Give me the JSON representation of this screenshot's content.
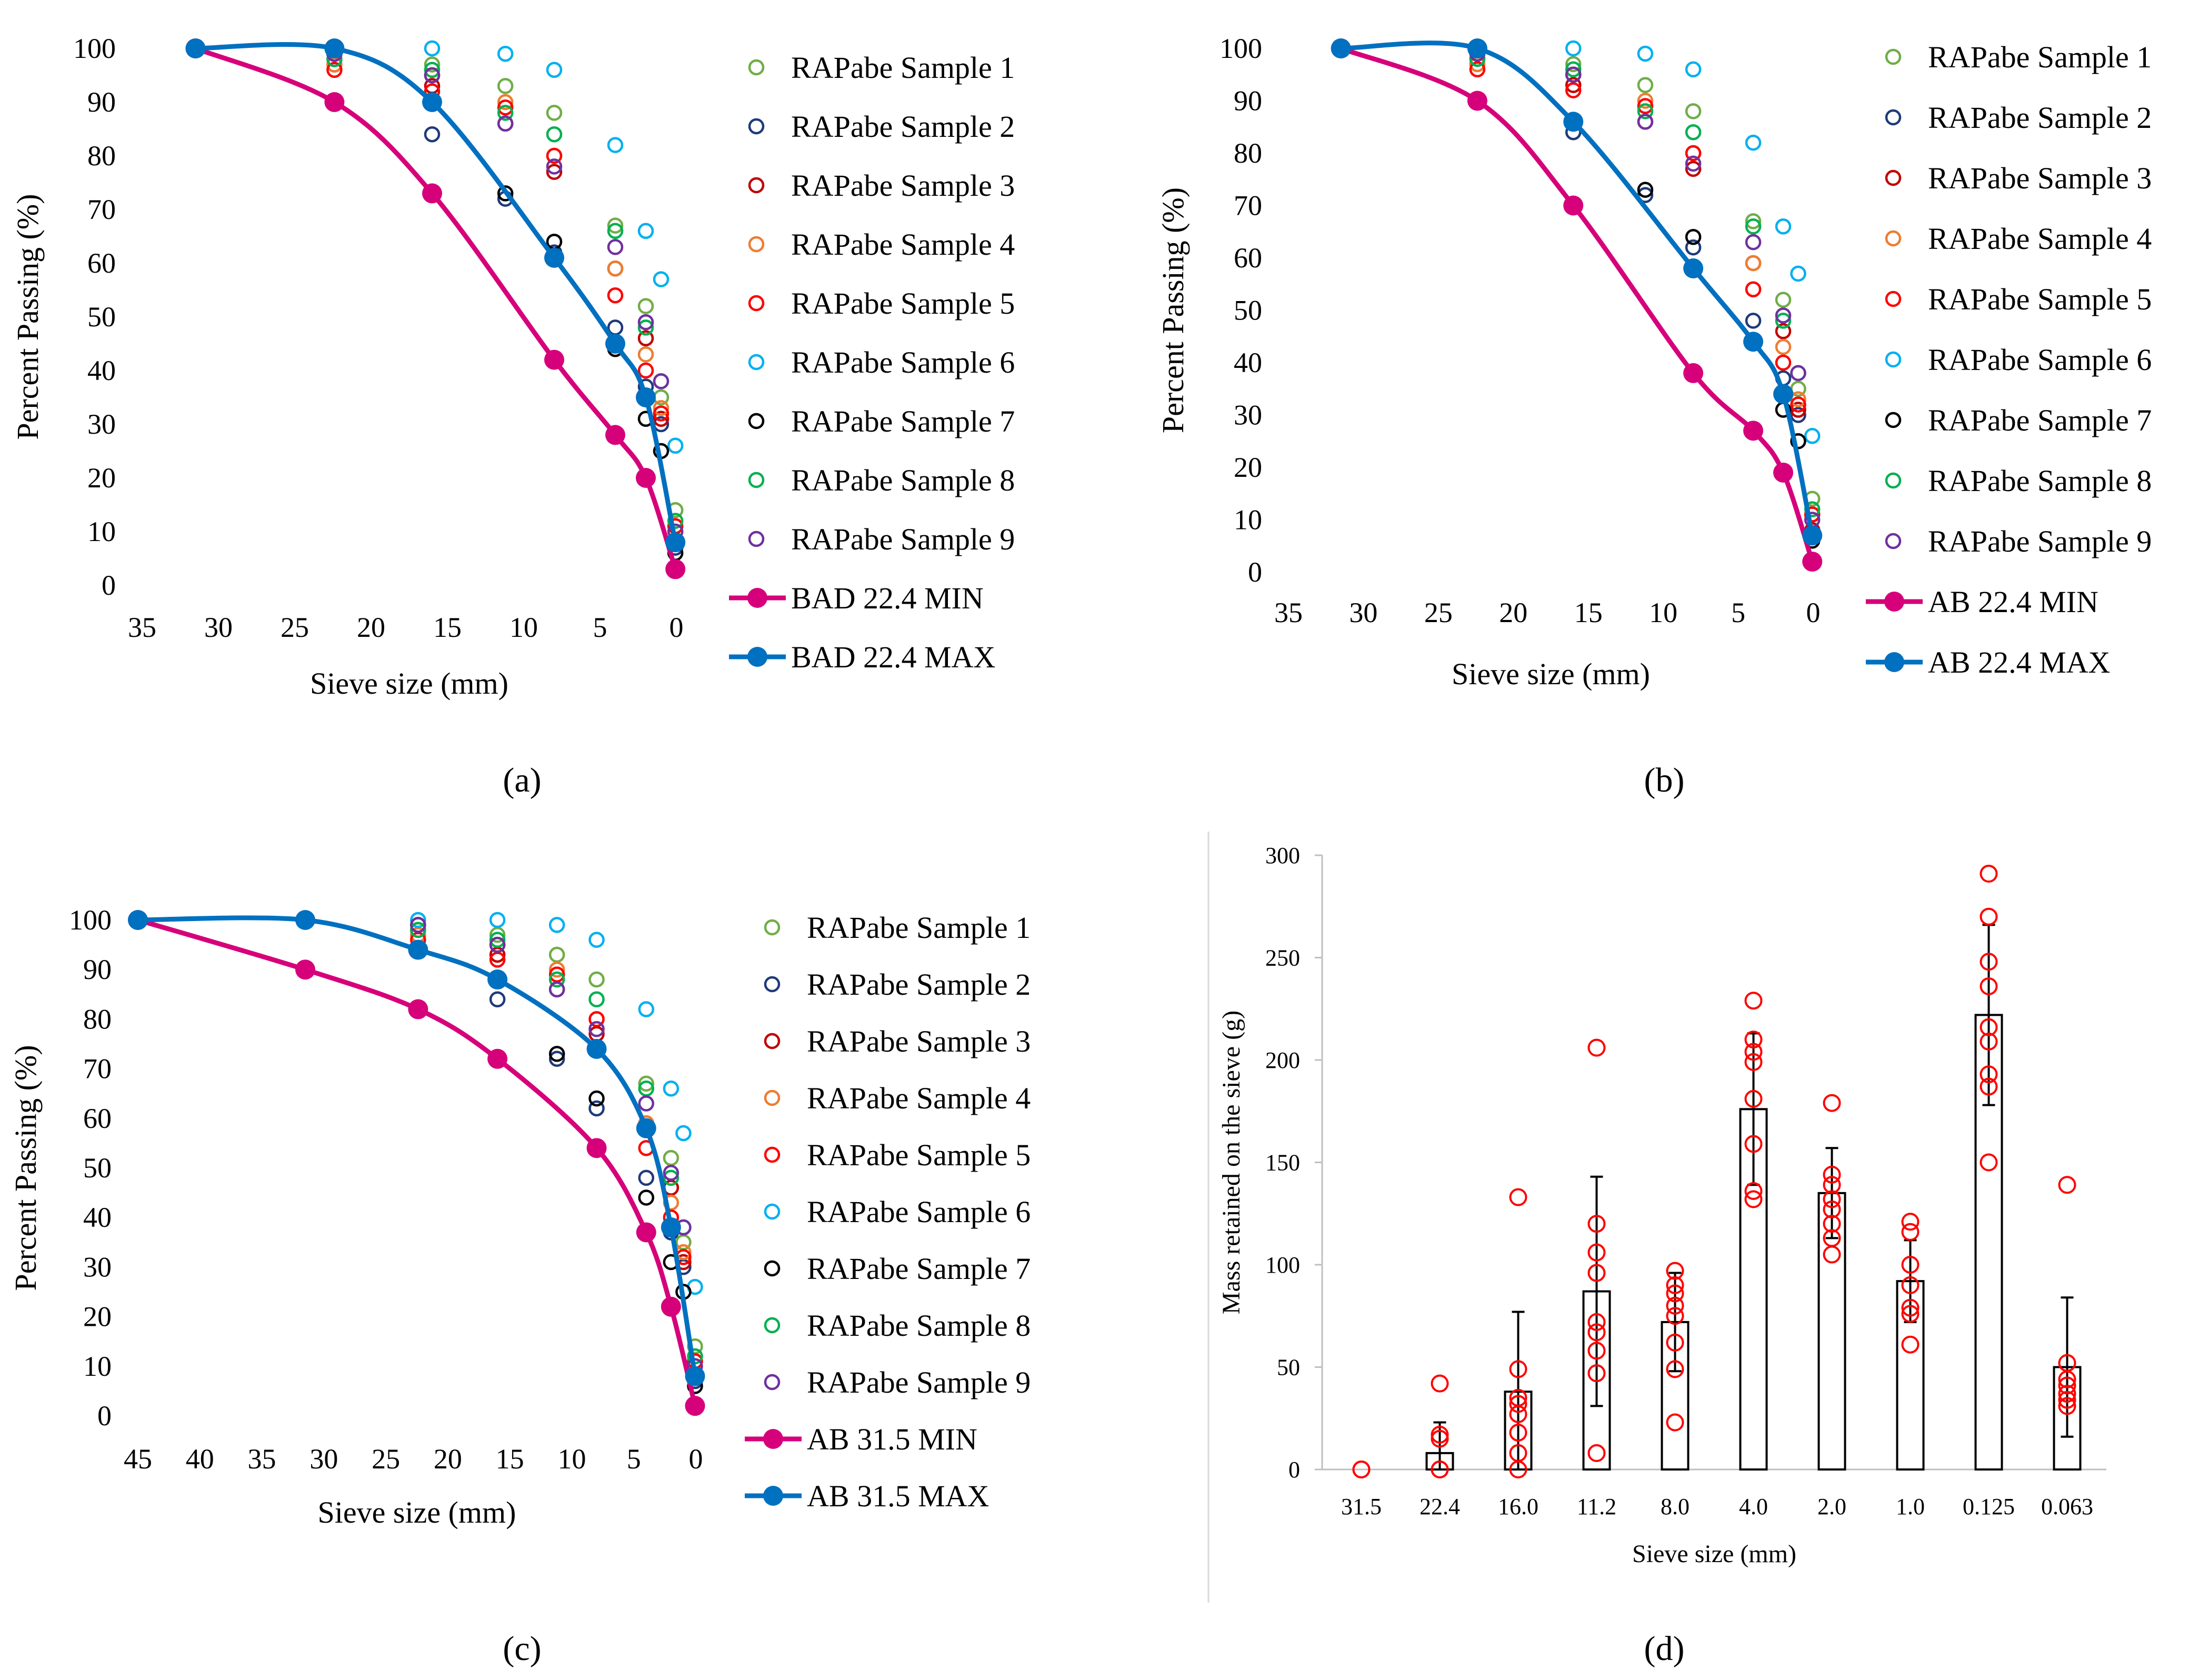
{
  "sample_colors": [
    "#70AD47",
    "#1F3A7A",
    "#C00000",
    "#ED7D31",
    "#FF0000",
    "#00B0F0",
    "#000000",
    "#00B050",
    "#7030A0"
  ],
  "min_color": "#D6007A",
  "max_color": "#0070C0",
  "bar_marker_color": "#FF0000",
  "chart_data": [
    {
      "type": "scatter",
      "panel_label": "(a)",
      "xlabel": "Sieve size (mm)",
      "ylabel": "Percent Passing (%)",
      "xlim": [
        35,
        0
      ],
      "ylim": [
        0,
        100
      ],
      "x_ticks": [
        "35",
        "30",
        "25",
        "20",
        "15",
        "10",
        "5",
        "0"
      ],
      "y_ticks": [
        "0",
        "10",
        "20",
        "30",
        "40",
        "50",
        "60",
        "70",
        "80",
        "90",
        "100"
      ],
      "sieves": [
        31.5,
        22.4,
        16,
        11.2,
        8,
        4,
        2,
        1,
        0.063
      ],
      "samples": [
        {
          "name": "RAPabe Sample 1",
          "values": [
            100,
            99,
            97,
            93,
            88,
            67,
            52,
            35,
            14
          ]
        },
        {
          "name": "RAPabe Sample 2",
          "values": [
            100,
            98,
            84,
            72,
            62,
            48,
            37,
            30,
            7
          ]
        },
        {
          "name": "RAPabe Sample 3",
          "values": [
            100,
            97,
            93,
            86,
            77,
            59,
            46,
            31,
            8
          ]
        },
        {
          "name": "RAPabe Sample 4",
          "values": [
            100,
            97,
            95,
            90,
            80,
            59,
            43,
            33,
            11
          ]
        },
        {
          "name": "RAPabe Sample 5",
          "values": [
            100,
            96,
            92,
            89,
            80,
            54,
            40,
            32,
            11
          ]
        },
        {
          "name": "RAPabe Sample 6",
          "values": [
            100,
            100,
            100,
            99,
            96,
            82,
            66,
            57,
            26
          ]
        },
        {
          "name": "RAPabe Sample 7",
          "values": [
            100,
            99,
            95,
            73,
            64,
            44,
            31,
            25,
            6
          ]
        },
        {
          "name": "RAPabe Sample 8",
          "values": [
            100,
            98,
            96,
            88,
            84,
            66,
            48,
            38,
            12
          ]
        },
        {
          "name": "RAPabe Sample 9",
          "values": [
            100,
            99,
            95,
            86,
            78,
            63,
            49,
            38,
            10
          ]
        }
      ],
      "min_curve": {
        "name": "BAD 22.4 MIN",
        "x": [
          31.5,
          22.4,
          16,
          8,
          4,
          2,
          0.063
        ],
        "y": [
          100,
          90,
          73,
          42,
          28,
          20,
          3
        ]
      },
      "max_curve": {
        "name": "BAD 22.4 MAX",
        "x": [
          31.5,
          22.4,
          16,
          8,
          4,
          2,
          0.063
        ],
        "y": [
          100,
          100,
          90,
          61,
          45,
          35,
          8
        ]
      }
    },
    {
      "type": "scatter",
      "panel_label": "(b)",
      "xlabel": "Sieve size (mm)",
      "ylabel": "Percent Passing (%)",
      "xlim": [
        35,
        0
      ],
      "ylim": [
        0,
        100
      ],
      "x_ticks": [
        "35",
        "30",
        "25",
        "20",
        "15",
        "10",
        "5",
        "0"
      ],
      "y_ticks": [
        "0",
        "10",
        "20",
        "30",
        "40",
        "50",
        "60",
        "70",
        "80",
        "90",
        "100"
      ],
      "sieves": [
        31.5,
        22.4,
        16,
        11.2,
        8,
        4,
        2,
        1,
        0.063
      ],
      "samples": [
        {
          "name": "RAPabe Sample 1",
          "values": [
            100,
            99,
            97,
            93,
            88,
            67,
            52,
            35,
            14
          ]
        },
        {
          "name": "RAPabe Sample 2",
          "values": [
            100,
            98,
            84,
            72,
            62,
            48,
            37,
            30,
            7
          ]
        },
        {
          "name": "RAPabe Sample 3",
          "values": [
            100,
            97,
            93,
            86,
            77,
            59,
            46,
            31,
            8
          ]
        },
        {
          "name": "RAPabe Sample 4",
          "values": [
            100,
            97,
            95,
            90,
            80,
            59,
            43,
            33,
            11
          ]
        },
        {
          "name": "RAPabe Sample 5",
          "values": [
            100,
            96,
            92,
            89,
            80,
            54,
            40,
            32,
            11
          ]
        },
        {
          "name": "RAPabe Sample 6",
          "values": [
            100,
            100,
            100,
            99,
            96,
            82,
            66,
            57,
            26
          ]
        },
        {
          "name": "RAPabe Sample 7",
          "values": [
            100,
            99,
            95,
            73,
            64,
            44,
            31,
            25,
            6
          ]
        },
        {
          "name": "RAPabe Sample 8",
          "values": [
            100,
            98,
            96,
            88,
            84,
            66,
            48,
            38,
            12
          ]
        },
        {
          "name": "RAPabe Sample 9",
          "values": [
            100,
            99,
            95,
            86,
            78,
            63,
            49,
            38,
            10
          ]
        }
      ],
      "min_curve": {
        "name": "AB 22.4 MIN",
        "x": [
          31.5,
          22.4,
          16,
          8,
          4,
          2,
          0.063
        ],
        "y": [
          100,
          90,
          70,
          38,
          27,
          19,
          2
        ]
      },
      "max_curve": {
        "name": "AB 22.4 MAX",
        "x": [
          31.5,
          22.4,
          16,
          8,
          4,
          2,
          0.063
        ],
        "y": [
          100,
          100,
          86,
          58,
          44,
          34,
          7
        ]
      }
    },
    {
      "type": "scatter",
      "panel_label": "(c)",
      "xlabel": "Sieve size (mm)",
      "ylabel": "Percent Passing (%)",
      "xlim": [
        45,
        0
      ],
      "ylim": [
        0,
        100
      ],
      "x_ticks": [
        "45",
        "40",
        "35",
        "30",
        "25",
        "20",
        "15",
        "10",
        "5",
        "0"
      ],
      "y_ticks": [
        "0",
        "10",
        "20",
        "30",
        "40",
        "50",
        "60",
        "70",
        "80",
        "90",
        "100"
      ],
      "sieves": [
        31.5,
        22.4,
        16,
        11.2,
        8,
        4,
        2,
        1,
        0.063
      ],
      "samples": [
        {
          "name": "RAPabe Sample 1",
          "values": [
            100,
            99,
            97,
            93,
            88,
            67,
            52,
            35,
            14
          ]
        },
        {
          "name": "RAPabe Sample 2",
          "values": [
            100,
            98,
            84,
            72,
            62,
            48,
            37,
            30,
            7
          ]
        },
        {
          "name": "RAPabe Sample 3",
          "values": [
            100,
            97,
            93,
            86,
            77,
            59,
            46,
            31,
            8
          ]
        },
        {
          "name": "RAPabe Sample 4",
          "values": [
            100,
            97,
            95,
            90,
            80,
            59,
            43,
            33,
            11
          ]
        },
        {
          "name": "RAPabe Sample 5",
          "values": [
            100,
            96,
            92,
            89,
            80,
            54,
            40,
            32,
            11
          ]
        },
        {
          "name": "RAPabe Sample 6",
          "values": [
            100,
            100,
            100,
            99,
            96,
            82,
            66,
            57,
            26
          ]
        },
        {
          "name": "RAPabe Sample 7",
          "values": [
            100,
            99,
            95,
            73,
            64,
            44,
            31,
            25,
            6
          ]
        },
        {
          "name": "RAPabe Sample 8",
          "values": [
            100,
            98,
            96,
            88,
            84,
            66,
            48,
            38,
            12
          ]
        },
        {
          "name": "RAPabe Sample 9",
          "values": [
            100,
            99,
            95,
            86,
            78,
            63,
            49,
            38,
            10
          ]
        }
      ],
      "min_curve": {
        "name": "AB 31.5 MIN",
        "x": [
          45,
          31.5,
          22.4,
          16,
          8,
          4,
          2,
          0.063
        ],
        "y": [
          100,
          90,
          82,
          72,
          54,
          37,
          22,
          2
        ]
      },
      "max_curve": {
        "name": "AB 31.5 MAX",
        "x": [
          45,
          31.5,
          22.4,
          16,
          8,
          4,
          2,
          0.063
        ],
        "y": [
          100,
          100,
          94,
          88,
          74,
          58,
          38,
          8
        ]
      }
    },
    {
      "type": "bar",
      "panel_label": "(d)",
      "xlabel": "Sieve size (mm)",
      "ylabel": "Mass retained on the sieve (g)",
      "ylim": [
        0,
        300
      ],
      "y_ticks": [
        "0",
        "50",
        "100",
        "150",
        "200",
        "250",
        "300"
      ],
      "categories": [
        "31.5",
        "22.4",
        "16.0",
        "11.2",
        "8.0",
        "4.0",
        "2.0",
        "1.0",
        "0.125",
        "0.063"
      ],
      "values": [
        0,
        8,
        38,
        87,
        72,
        176,
        135,
        92,
        222,
        50
      ],
      "error": [
        0,
        15,
        39,
        56,
        24,
        37,
        22,
        20,
        44,
        34
      ],
      "points": [
        [
          0,
          0
        ],
        [
          0,
          0,
          15,
          17,
          42
        ],
        [
          0,
          8,
          18,
          27,
          32,
          35,
          49,
          133
        ],
        [
          8,
          47,
          58,
          67,
          72,
          96,
          106,
          120,
          206
        ],
        [
          23,
          49,
          62,
          75,
          80,
          86,
          90,
          97
        ],
        [
          132,
          136,
          159,
          181,
          199,
          204,
          210,
          229
        ],
        [
          105,
          113,
          120,
          127,
          132,
          139,
          144,
          179
        ],
        [
          61,
          76,
          79,
          90,
          100,
          116,
          121
        ],
        [
          150,
          187,
          193,
          209,
          216,
          236,
          248,
          270,
          291
        ],
        [
          31,
          34,
          37,
          41,
          44,
          52,
          139
        ]
      ]
    }
  ]
}
